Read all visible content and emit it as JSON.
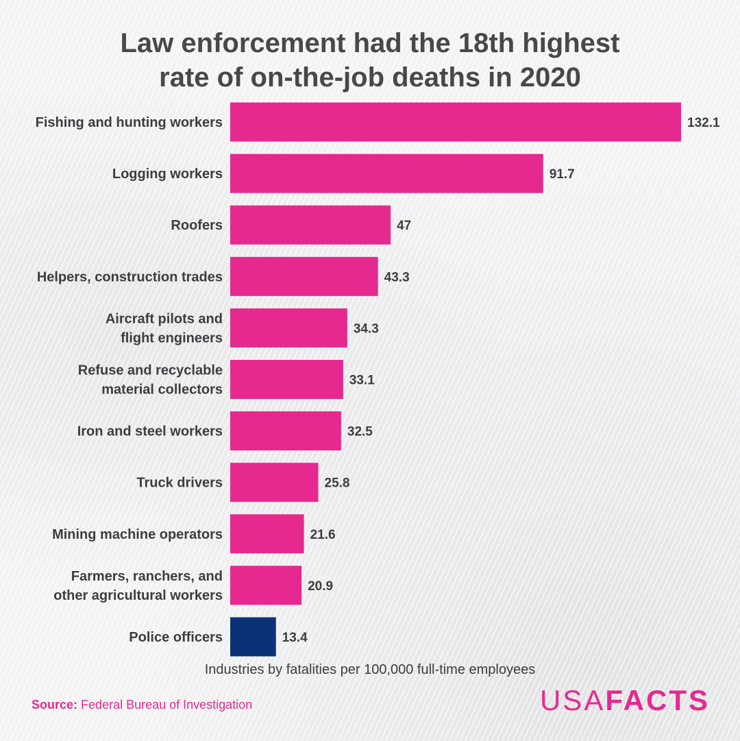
{
  "title": {
    "line1": "Law enforcement had the 18th highest",
    "line2": "rate of on-the-job deaths in 2020"
  },
  "colors": {
    "primary_bar": "#e6298e",
    "highlight_bar": "#0b3177",
    "text": "#3d3d40"
  },
  "chart_data": {
    "type": "bar",
    "orientation": "horizontal",
    "categories": [
      [
        "Fishing and hunting workers"
      ],
      [
        "Logging workers"
      ],
      [
        "Roofers"
      ],
      [
        "Helpers, construction trades"
      ],
      [
        "Aircraft pilots and",
        "flight engineers"
      ],
      [
        "Refuse and recyclable",
        "material collectors"
      ],
      [
        "Iron and steel workers"
      ],
      [
        "Truck drivers"
      ],
      [
        "Mining machine operators"
      ],
      [
        "Farmers, ranchers, and",
        "other agricultural workers"
      ],
      [
        "Police officers"
      ]
    ],
    "values": [
      132.1,
      91.7,
      47,
      43.3,
      34.3,
      33.1,
      32.5,
      25.8,
      21.6,
      20.9,
      13.4
    ],
    "value_labels": [
      "132.1",
      "91.7",
      "47",
      "43.3",
      "34.3",
      "33.1",
      "32.5",
      "25.8",
      "21.6",
      "20.9",
      "13.4"
    ],
    "highlight_index": 10,
    "xlabel": "Industries by fatalities per 100,000 full-time employees",
    "xlim": [
      0,
      132.1
    ],
    "grid": false
  },
  "footer": {
    "source_key": "Source:",
    "source_text": "Federal Bureau of Investigation",
    "logo_part1": "USA",
    "logo_part2": "FACTS"
  }
}
